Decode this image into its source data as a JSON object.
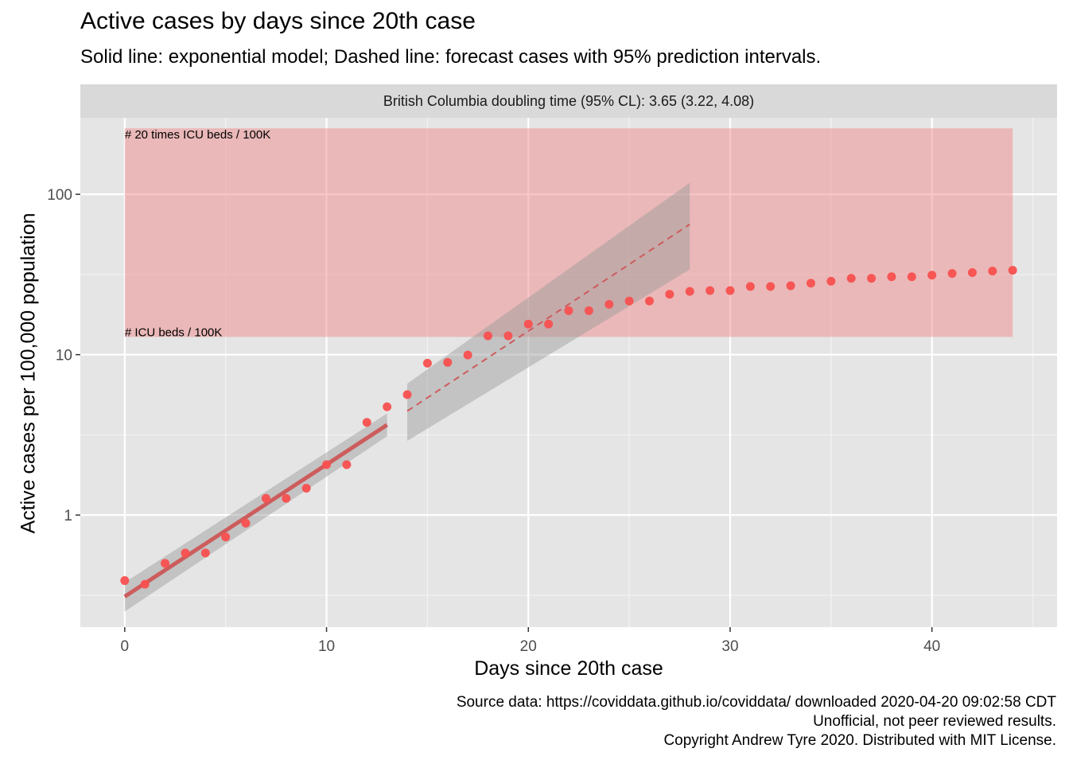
{
  "chart_data": {
    "type": "scatter",
    "title": "Active cases by days since 20th case",
    "subtitle": "Solid line: exponential model; Dashed line: forecast cases with 95% prediction intervals.",
    "facet_label": "British Columbia doubling time (95% CL): 3.65 (3.22, 4.08)",
    "xlabel": "Days since 20th case",
    "ylabel": "Active cases per 100,000 population",
    "y_scale": "log10",
    "xlim": [
      -2.2,
      46.2
    ],
    "ylim": [
      0.2,
      300
    ],
    "x_ticks": [
      0,
      10,
      20,
      30,
      40
    ],
    "x_tick_labels": [
      "0",
      "10",
      "20",
      "30",
      "40"
    ],
    "y_ticks": [
      1,
      10,
      100
    ],
    "y_tick_labels": [
      "1",
      "10",
      "100"
    ],
    "grid": true,
    "points": {
      "color": "#f8504f",
      "x": [
        0,
        1,
        2,
        3,
        4,
        5,
        6,
        7,
        8,
        9,
        10,
        11,
        12,
        13,
        14,
        15,
        16,
        17,
        18,
        19,
        20,
        21,
        22,
        23,
        24,
        25,
        26,
        27,
        28,
        29,
        30,
        31,
        32,
        33,
        34,
        35,
        36,
        37,
        38,
        39,
        40,
        41,
        42,
        43,
        44
      ],
      "y": [
        0.39,
        0.37,
        0.5,
        0.58,
        0.58,
        0.73,
        0.89,
        1.27,
        1.27,
        1.47,
        2.06,
        2.06,
        3.78,
        4.73,
        5.63,
        8.85,
        8.95,
        9.95,
        13.1,
        13.1,
        15.5,
        15.5,
        18.8,
        18.8,
        20.6,
        21.6,
        21.6,
        23.8,
        24.8,
        25.1,
        25.1,
        26.6,
        26.6,
        26.9,
        27.9,
        28.7,
        29.9,
        29.9,
        30.6,
        30.6,
        31.3,
        32.1,
        32.5,
        33.2,
        33.6
      ]
    },
    "icu_band": {
      "xmin": 0,
      "xmax": 44,
      "ymin": 12.9,
      "ymax": 258,
      "color": "#f08080",
      "label_low": "# ICU beds / 100K",
      "label_high": "# 20 times ICU beds / 100K"
    },
    "model_fit": {
      "x": [
        0,
        13
      ],
      "y": [
        0.31,
        3.65
      ],
      "ci_lower": [
        0.25,
        3.1
      ],
      "ci_upper": [
        0.38,
        4.3
      ],
      "color": "#cd5c5c"
    },
    "forecast": {
      "x": [
        14,
        28
      ],
      "y": [
        4.45,
        65
      ],
      "pi_lower": [
        2.9,
        34
      ],
      "pi_upper": [
        6.6,
        118
      ],
      "color": "#cd5c5c"
    },
    "caption": [
      "Source data: https://coviddata.github.io/coviddata/ downloaded  2020-04-20 09:02:58 CDT",
      "Unofficial, not peer reviewed results.",
      "Copyright Andrew Tyre 2020. Distributed with MIT License."
    ]
  }
}
